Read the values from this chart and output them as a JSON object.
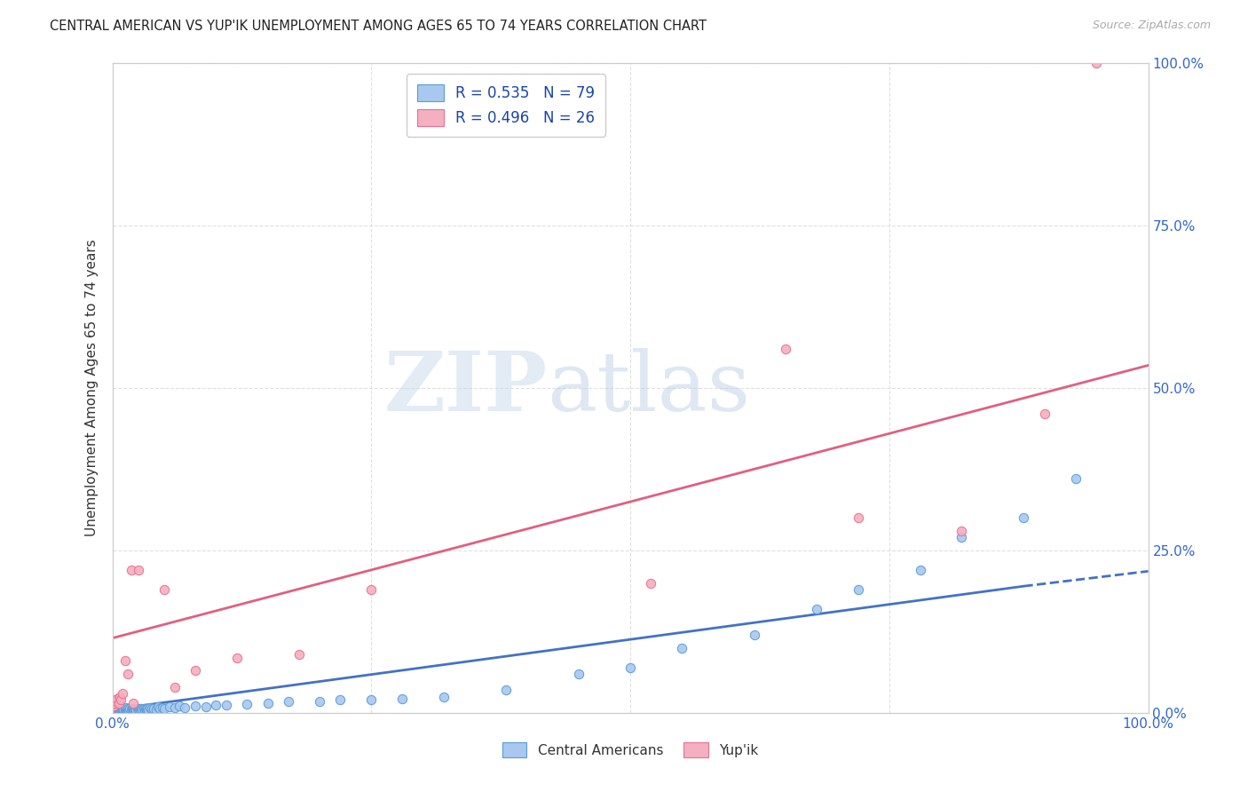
{
  "title": "CENTRAL AMERICAN VS YUP'IK UNEMPLOYMENT AMONG AGES 65 TO 74 YEARS CORRELATION CHART",
  "source": "Source: ZipAtlas.com",
  "ylabel": "Unemployment Among Ages 65 to 74 years",
  "xlim": [
    0,
    1.0
  ],
  "ylim": [
    0,
    1.0
  ],
  "xtick_positions": [
    0.0,
    0.25,
    0.5,
    0.75,
    1.0
  ],
  "xtick_labels_visible": [
    "0.0%",
    "",
    "",
    "",
    "100.0%"
  ],
  "ytick_positions": [
    0.0,
    0.25,
    0.5,
    0.75,
    1.0
  ],
  "right_ytick_labels": [
    "0.0%",
    "25.0%",
    "50.0%",
    "75.0%",
    "100.0%"
  ],
  "ca_color": "#a8c8f0",
  "yupik_color": "#f4b0c0",
  "ca_edge_color": "#5b9bd5",
  "yupik_edge_color": "#e87090",
  "ca_line_color": "#4472c4",
  "yupik_line_color": "#e06080",
  "ca_R": 0.535,
  "ca_N": 79,
  "yupik_R": 0.496,
  "yupik_N": 26,
  "legend_label_ca": "Central Americans",
  "legend_label_yupik": "Yup'ik",
  "watermark_zip": "ZIP",
  "watermark_atlas": "atlas",
  "background_color": "#ffffff",
  "grid_color": "#dddddd",
  "ca_trend_x0": 0.0,
  "ca_trend_y0": 0.005,
  "ca_trend_x1": 0.88,
  "ca_trend_y1": 0.195,
  "ca_trend_dash_x0": 0.88,
  "ca_trend_dash_y0": 0.195,
  "ca_trend_dash_x1": 1.0,
  "ca_trend_dash_y1": 0.218,
  "yupik_trend_x0": 0.0,
  "yupik_trend_y0": 0.115,
  "yupik_trend_x1": 1.0,
  "yupik_trend_y1": 0.535,
  "ca_x": [
    0.001,
    0.002,
    0.003,
    0.004,
    0.005,
    0.005,
    0.006,
    0.007,
    0.007,
    0.008,
    0.008,
    0.009,
    0.009,
    0.01,
    0.01,
    0.011,
    0.012,
    0.012,
    0.013,
    0.013,
    0.014,
    0.015,
    0.015,
    0.016,
    0.017,
    0.018,
    0.019,
    0.02,
    0.02,
    0.021,
    0.022,
    0.023,
    0.024,
    0.025,
    0.026,
    0.027,
    0.028,
    0.029,
    0.03,
    0.031,
    0.032,
    0.033,
    0.034,
    0.035,
    0.036,
    0.038,
    0.04,
    0.042,
    0.044,
    0.046,
    0.048,
    0.05,
    0.055,
    0.06,
    0.065,
    0.07,
    0.08,
    0.09,
    0.1,
    0.11,
    0.13,
    0.15,
    0.17,
    0.2,
    0.22,
    0.25,
    0.28,
    0.32,
    0.38,
    0.45,
    0.5,
    0.55,
    0.62,
    0.68,
    0.72,
    0.78,
    0.82,
    0.88,
    0.93
  ],
  "ca_y": [
    0.005,
    0.004,
    0.005,
    0.006,
    0.004,
    0.007,
    0.005,
    0.004,
    0.006,
    0.004,
    0.007,
    0.005,
    0.006,
    0.004,
    0.007,
    0.005,
    0.004,
    0.006,
    0.005,
    0.008,
    0.004,
    0.005,
    0.007,
    0.004,
    0.006,
    0.005,
    0.007,
    0.004,
    0.006,
    0.005,
    0.007,
    0.004,
    0.006,
    0.005,
    0.007,
    0.004,
    0.006,
    0.005,
    0.007,
    0.004,
    0.006,
    0.005,
    0.007,
    0.004,
    0.008,
    0.006,
    0.007,
    0.005,
    0.009,
    0.006,
    0.008,
    0.007,
    0.009,
    0.008,
    0.01,
    0.008,
    0.01,
    0.009,
    0.012,
    0.012,
    0.013,
    0.015,
    0.018,
    0.018,
    0.02,
    0.02,
    0.022,
    0.025,
    0.035,
    0.06,
    0.07,
    0.1,
    0.12,
    0.16,
    0.19,
    0.22,
    0.27,
    0.3,
    0.36
  ],
  "yupik_x": [
    0.001,
    0.002,
    0.003,
    0.004,
    0.005,
    0.006,
    0.007,
    0.008,
    0.01,
    0.012,
    0.015,
    0.018,
    0.02,
    0.025,
    0.05,
    0.06,
    0.08,
    0.12,
    0.18,
    0.25,
    0.52,
    0.65,
    0.72,
    0.82,
    0.9,
    0.95
  ],
  "yupik_y": [
    0.01,
    0.015,
    0.02,
    0.018,
    0.022,
    0.015,
    0.025,
    0.02,
    0.03,
    0.08,
    0.06,
    0.22,
    0.015,
    0.22,
    0.19,
    0.04,
    0.065,
    0.085,
    0.09,
    0.19,
    0.2,
    0.56,
    0.3,
    0.28,
    0.46,
    1.0
  ]
}
